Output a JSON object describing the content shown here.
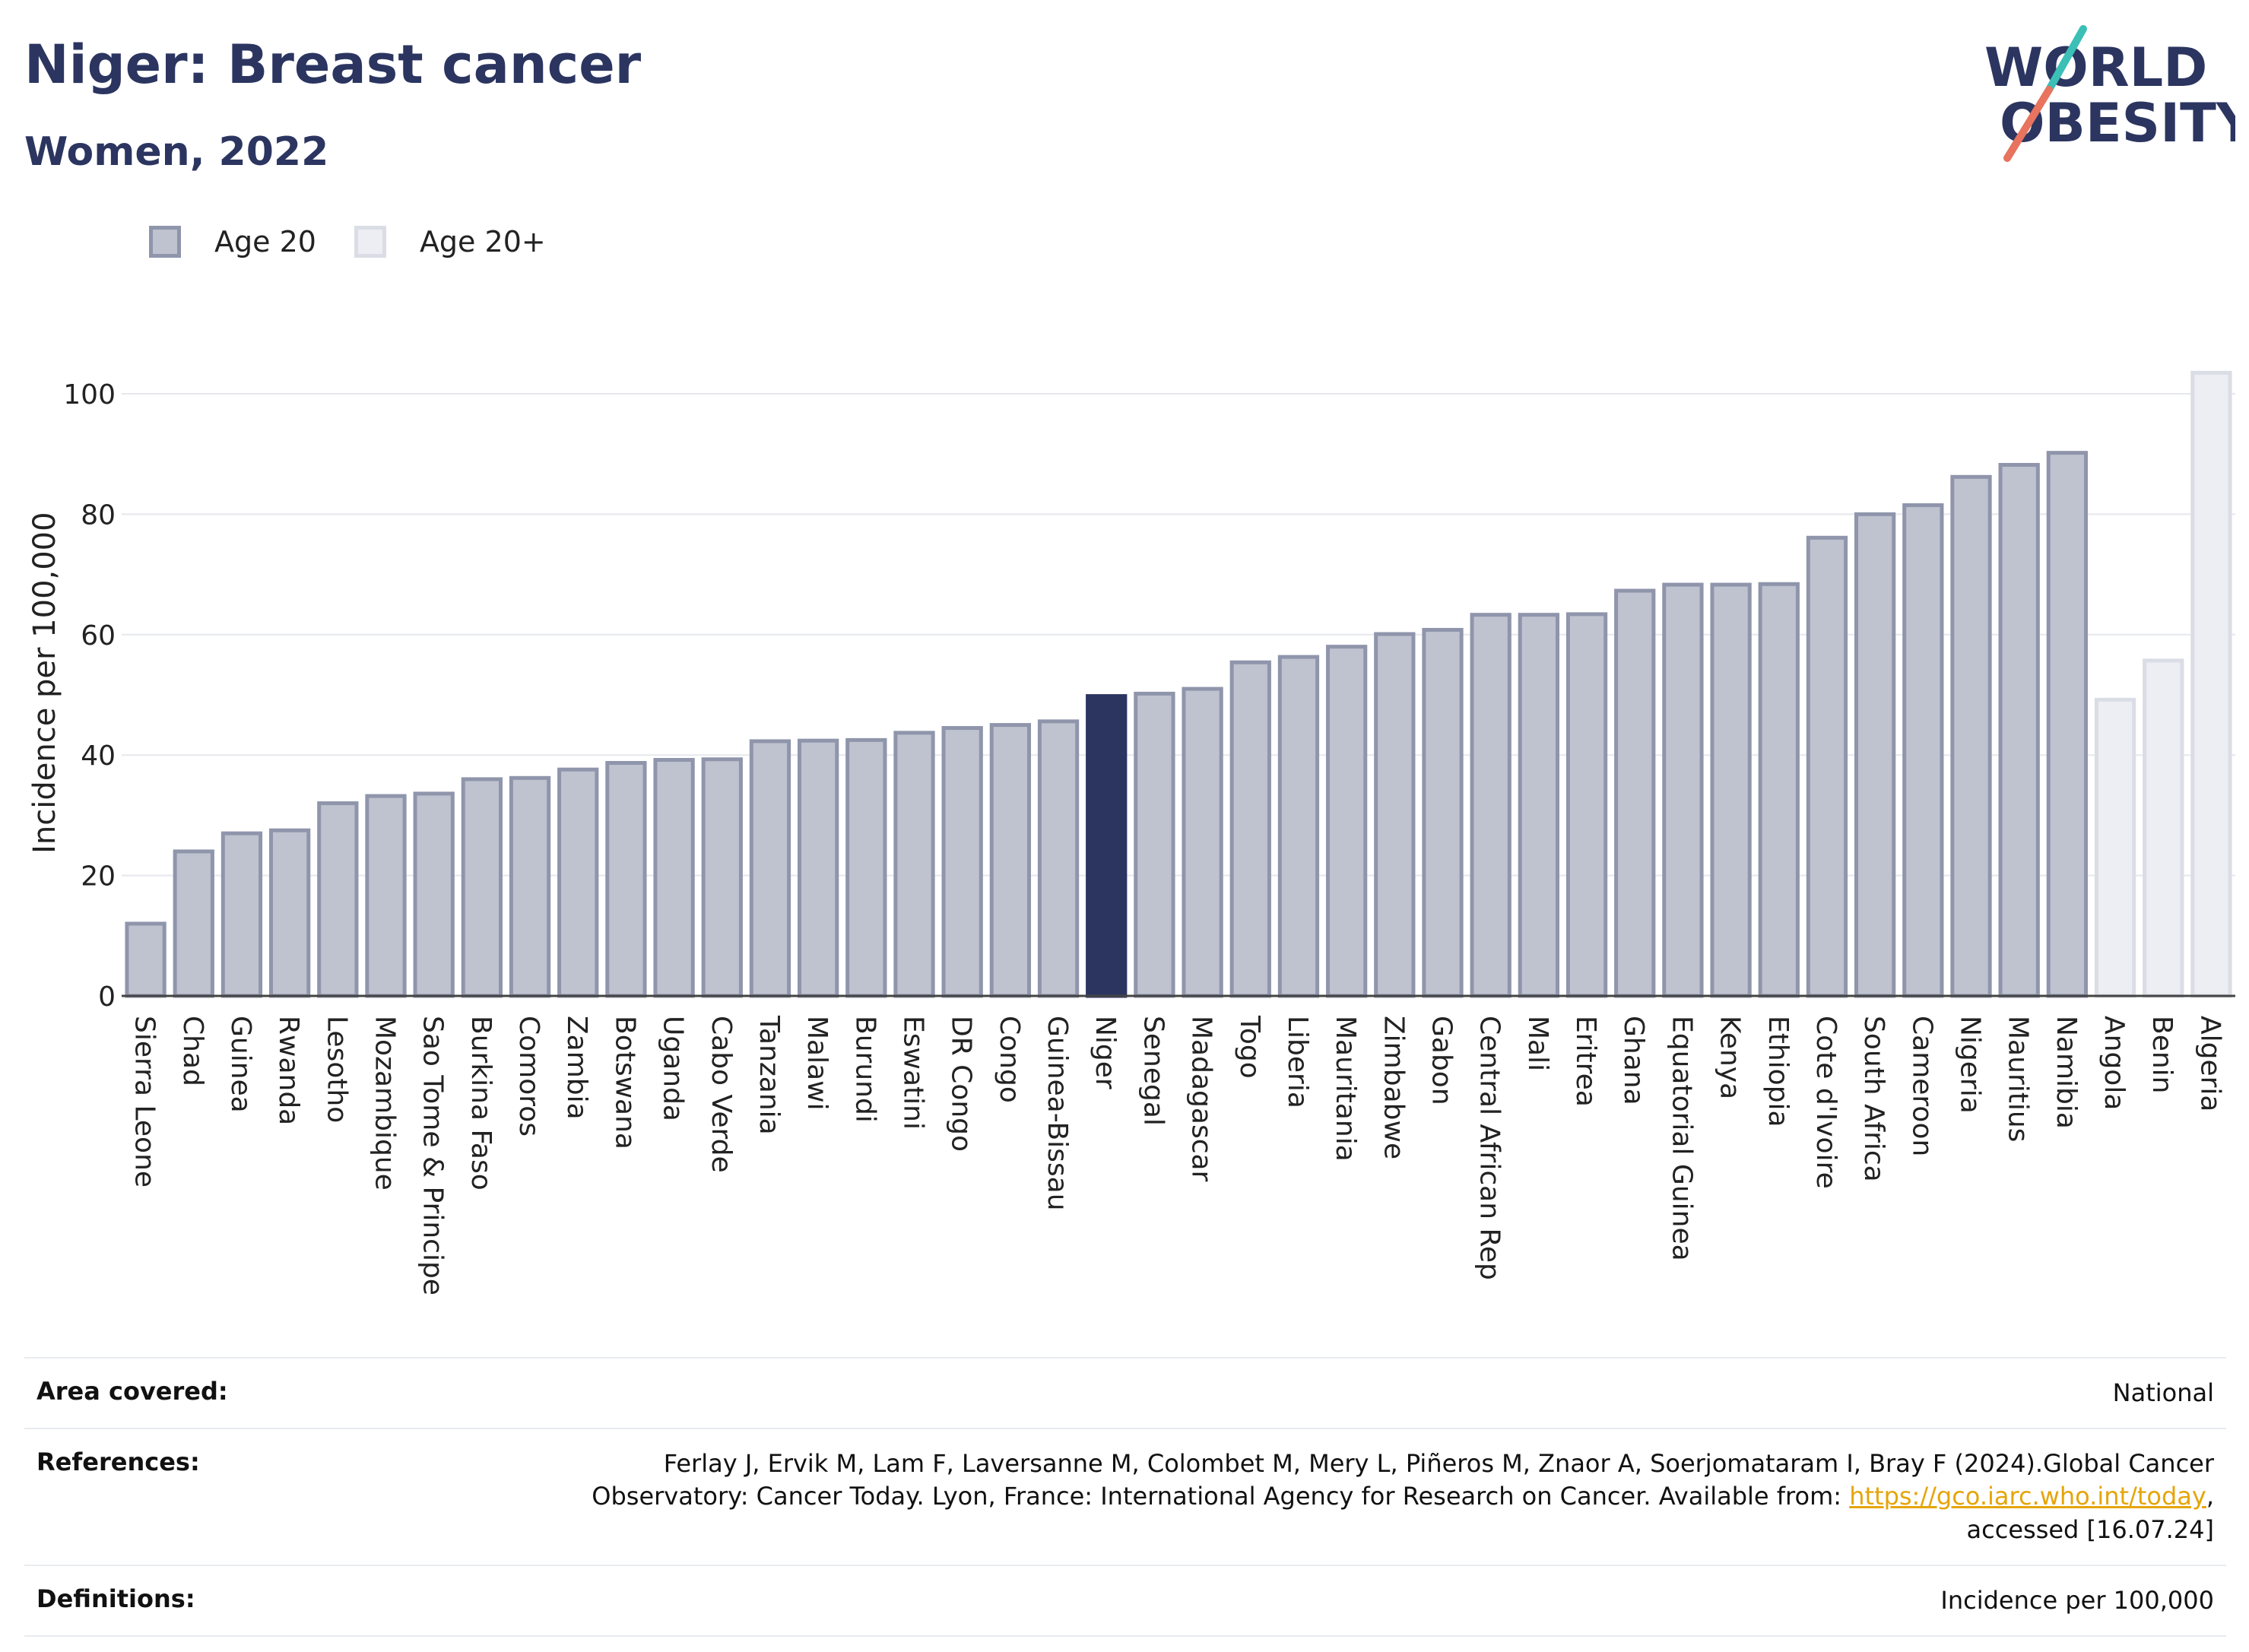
{
  "header": {
    "title": "Niger: Breast cancer",
    "subtitle": "Women, 2022"
  },
  "logo": {
    "line1": "WORLD",
    "line2": "OBESITY"
  },
  "legend": {
    "items": [
      "Age 20",
      "Age 20+"
    ]
  },
  "colors": {
    "bar": "#bfc2cf",
    "bar_border": "#8f95ab",
    "highlight": "#2b3560",
    "age20plus": "#eceef3",
    "age20plus_border": "#dadde5",
    "logo_teal": "#3bbfb6",
    "logo_coral": "#e8735f"
  },
  "chart_data": {
    "type": "bar",
    "ylabel": "Incidence per 100,000",
    "ylim": [
      0,
      105
    ],
    "yticks": [
      0,
      20,
      40,
      60,
      80,
      100
    ],
    "grid": true,
    "legend_position": "top-left",
    "highlight": "Niger",
    "categories": [
      "Sierra Leone",
      "Chad",
      "Guinea",
      "Rwanda",
      "Lesotho",
      "Mozambique",
      "Sao Tome & Principe",
      "Burkina Faso",
      "Comoros",
      "Zambia",
      "Botswana",
      "Uganda",
      "Cabo Verde",
      "Tanzania",
      "Malawi",
      "Burundi",
      "Eswatini",
      "DR Congo",
      "Congo",
      "Guinea-Bissau",
      "Niger",
      "Senegal",
      "Madagascar",
      "Togo",
      "Liberia",
      "Mauritania",
      "Zimbabwe",
      "Gabon",
      "Central African Rep",
      "Mali",
      "Eritrea",
      "Ghana",
      "Equatorial Guinea",
      "Kenya",
      "Ethiopia",
      "Cote d'Ivoire",
      "South Africa",
      "Cameroon",
      "Nigeria",
      "Mauritius",
      "Namibia",
      "Angola",
      "Benin",
      "Algeria"
    ],
    "values": [
      12,
      24,
      27,
      27.5,
      32,
      33.2,
      33.6,
      36,
      36.2,
      37.6,
      38.7,
      39.2,
      39.3,
      42.3,
      42.4,
      42.5,
      43.7,
      44.5,
      45,
      45.6,
      49.8,
      50.2,
      51,
      55.4,
      56.3,
      58,
      60.1,
      60.8,
      63.3,
      63.3,
      63.4,
      67.3,
      68.3,
      68.3,
      68.4,
      76.1,
      80,
      81.5,
      86.2,
      88.2,
      90.2,
      49.2,
      55.7,
      103.5
    ],
    "series_group": [
      "Age 20",
      "Age 20",
      "Age 20",
      "Age 20",
      "Age 20",
      "Age 20",
      "Age 20",
      "Age 20",
      "Age 20",
      "Age 20",
      "Age 20",
      "Age 20",
      "Age 20",
      "Age 20",
      "Age 20",
      "Age 20",
      "Age 20",
      "Age 20",
      "Age 20",
      "Age 20",
      "Age 20",
      "Age 20",
      "Age 20",
      "Age 20",
      "Age 20",
      "Age 20",
      "Age 20",
      "Age 20",
      "Age 20",
      "Age 20",
      "Age 20",
      "Age 20",
      "Age 20",
      "Age 20",
      "Age 20",
      "Age 20",
      "Age 20",
      "Age 20",
      "Age 20",
      "Age 20",
      "Age 20",
      "Age 20+",
      "Age 20+",
      "Age 20+"
    ]
  },
  "meta": {
    "area_label": "Area covered:",
    "area_value": "National",
    "references_label": "References:",
    "references_line1": "Ferlay J, Ervik M, Lam F, Laversanne M, Colombet M, Mery L, Piñeros M, Znaor A, Soerjomataram I, Bray F (2024).Global Cancer",
    "references_line2": "Observatory: Cancer Today. Lyon, France: International Agency for Research on Cancer. Available from: ",
    "references_link": "https://gco.iarc.who.int/today",
    "references_line2_end": ",",
    "references_line3": "accessed [16.07.24]",
    "definitions_label": "Definitions:",
    "definitions_value": "Incidence per 100,000"
  }
}
